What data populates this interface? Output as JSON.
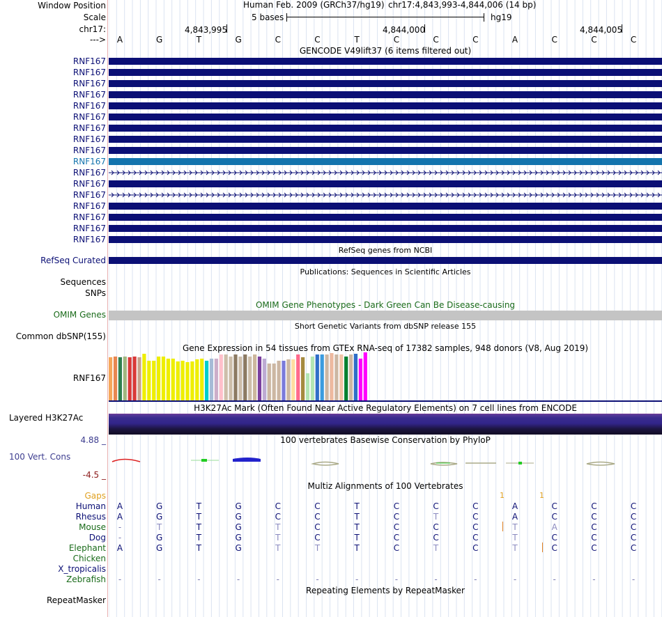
{
  "header": {
    "window_position_label": "Window Position",
    "scale_label": "Scale",
    "chrom_label": "chr17:",
    "strand_label": "--->",
    "assembly_text": "Human Feb. 2009 (GRCh37/hg19)",
    "position_text": "chr17:4,843,993-4,844,006 (14 bp)",
    "scale_text": "5 bases",
    "db_text": "hg19",
    "coords": [
      "4,843,995",
      "4,844,000",
      "4,844,005"
    ]
  },
  "bases": [
    "A",
    "G",
    "T",
    "G",
    "C",
    "C",
    "T",
    "C",
    "C",
    "C",
    "A",
    "C",
    "C",
    "C"
  ],
  "gencode": {
    "title": "GENCODE V49lift37 (6 items filtered out)",
    "genes": [
      {
        "label": "RNF167",
        "style": "solid"
      },
      {
        "label": "RNF167",
        "style": "solid"
      },
      {
        "label": "RNF167",
        "style": "solid"
      },
      {
        "label": "RNF167",
        "style": "solid"
      },
      {
        "label": "RNF167",
        "style": "solid"
      },
      {
        "label": "RNF167",
        "style": "solid"
      },
      {
        "label": "RNF167",
        "style": "solid"
      },
      {
        "label": "RNF167",
        "style": "solid"
      },
      {
        "label": "RNF167",
        "style": "solid"
      },
      {
        "label": "RNF167",
        "style": "highlight"
      },
      {
        "label": "RNF167",
        "style": "intron"
      },
      {
        "label": "RNF167",
        "style": "solid"
      },
      {
        "label": "RNF167",
        "style": "intron"
      },
      {
        "label": "RNF167",
        "style": "solid"
      },
      {
        "label": "RNF167",
        "style": "solid"
      },
      {
        "label": "RNF167",
        "style": "solid"
      },
      {
        "label": "RNF167",
        "style": "solid"
      }
    ],
    "color": "#0b0f75",
    "highlight_color": "#1374ad"
  },
  "refseq": {
    "title": "RefSeq genes from NCBI",
    "label": "RefSeq Curated"
  },
  "publications": {
    "title": "Publications: Sequences in Scientific Articles",
    "label1": "Sequences",
    "label2": "SNPs"
  },
  "omim": {
    "title": "OMIM Gene Phenotypes - Dark Green Can Be Disease-causing",
    "label": "OMIM Genes",
    "color": "#1a6b1a"
  },
  "dbsnp": {
    "title": "Short Genetic Variants from dbSNP release 155",
    "label": "Common dbSNP(155)"
  },
  "gtex": {
    "title": "Gene Expression in 54 tissues from GTEx RNA-seq of 17382 samples, 948 donors (V8, Aug 2019)",
    "label": "RNF167",
    "levels": [
      0.88,
      0.9,
      0.88,
      0.9,
      0.88,
      0.9,
      0.88,
      0.95,
      0.82,
      0.82,
      0.9,
      0.9,
      0.86,
      0.86,
      0.8,
      0.82,
      0.78,
      0.8,
      0.84,
      0.86,
      0.82,
      0.86,
      0.86,
      0.94,
      0.94,
      0.9,
      0.94,
      0.9,
      0.94,
      0.9,
      0.94,
      0.9,
      0.86,
      0.76,
      0.76,
      0.82,
      0.82,
      0.84,
      0.84,
      0.94,
      0.88,
      0.56,
      0.9,
      0.94,
      0.94,
      0.94,
      0.97,
      0.94,
      0.94,
      0.9,
      0.94,
      0.96,
      0.86,
      0.99
    ],
    "colors": [
      "#f5a65a",
      "#e88650",
      "#2f7f4f",
      "#a1b780",
      "#d93939",
      "#d93939",
      "#c7a38d",
      "#eeee00",
      "#eeee00",
      "#eeee00",
      "#eeee00",
      "#eeee00",
      "#eeee00",
      "#eeee00",
      "#eeee00",
      "#eeee00",
      "#eeee00",
      "#eeee00",
      "#eeee00",
      "#eeee00",
      "#00cdcd",
      "#a6bbd6",
      "#ccaec9",
      "#ffc0cb",
      "#cdbeaa",
      "#cdbeaa",
      "#8c7a62",
      "#cdbeaa",
      "#8c7a62",
      "#cdbeaa",
      "#ccb79d",
      "#7a3f9e",
      "#bdaad3",
      "#ccb7a3",
      "#ccb7a3",
      "#ccb7a3",
      "#7a7adb",
      "#ccb7a3",
      "#ffdda0",
      "#ff6a8c",
      "#a58a3f",
      "#b3e5b3",
      "#b3e5b3",
      "#2f6ec8",
      "#3a9bde",
      "#ccb7a3",
      "#eeb99f",
      "#ccb7a3",
      "#f2c4a6",
      "#00802f",
      "#ccb7a3",
      "#2f6ec8",
      "#ff00ff",
      "#ff00ff"
    ]
  },
  "h3k27": {
    "title": "H3K27Ac Mark (Often Found Near Active Regulatory Elements) on 7 cell lines from ENCODE",
    "label": "Layered H3K27Ac"
  },
  "cons": {
    "title": "100 vertebrates Basewise Conservation by PhyloP",
    "label": "100 Vert. Cons",
    "max": "4.88 _",
    "min": "-4.5 _",
    "title_color": "#4a4aa0"
  },
  "multiz": {
    "title": "Multiz Alignments of 100 Vertebrates",
    "title_color": "#3d3d8f",
    "gaps_label": "Gaps",
    "gap_counts": [
      "1",
      "1"
    ],
    "species": [
      {
        "name": "Human",
        "color": "#0b0f75",
        "row": [
          "A",
          "G",
          "T",
          "G",
          "C",
          "C",
          "T",
          "C",
          "C",
          "C",
          "A",
          "C",
          "C",
          "C"
        ]
      },
      {
        "name": "Rhesus",
        "color": "#0b0f75",
        "row": [
          "A",
          "G",
          "T",
          "G",
          "C",
          "C",
          "T",
          "C",
          "T",
          "C",
          "A",
          "C",
          "C",
          "C"
        ]
      },
      {
        "name": "Mouse",
        "color": "#1a6b1a",
        "row": [
          "-",
          "T",
          "T",
          "G",
          "T",
          "C",
          "T",
          "C",
          "C",
          "C",
          "T",
          "A",
          "C",
          "C"
        ]
      },
      {
        "name": "Dog",
        "color": "#0b0f75",
        "row": [
          "-",
          "G",
          "T",
          "G",
          "T",
          "C",
          "T",
          "C",
          "C",
          "C",
          "T",
          "C",
          "C",
          "C"
        ]
      },
      {
        "name": "Elephant",
        "color": "#1a6b1a",
        "row": [
          "A",
          "G",
          "T",
          "G",
          "T",
          "T",
          "T",
          "C",
          "T",
          "C",
          "T",
          "C",
          "C",
          "C"
        ]
      },
      {
        "name": "Chicken",
        "color": "#1a6b1a",
        "row": []
      },
      {
        "name": "X_tropicalis",
        "color": "#0b0f75",
        "row": []
      },
      {
        "name": "Zebrafish",
        "color": "#1a6b1a",
        "row": [
          "-",
          "-",
          "-",
          "-",
          "-",
          "-",
          "-",
          "-",
          "-",
          "-",
          "-",
          "-",
          "-",
          "-"
        ]
      }
    ]
  },
  "repeatmasker": {
    "title": "Repeating Elements by RepeatMasker",
    "label": "RepeatMasker"
  }
}
